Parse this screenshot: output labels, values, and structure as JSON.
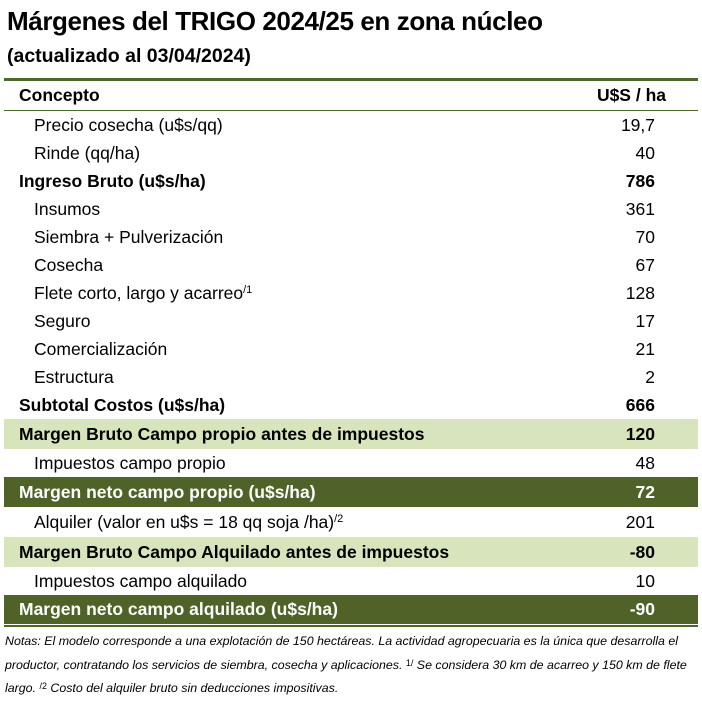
{
  "title": "Márgenes del TRIGO 2024/25 en zona núcleo",
  "subtitle": "(actualizado al 03/04/2024)",
  "header": {
    "concept": "Concepto",
    "unit": "U$S / ha"
  },
  "rows": [
    {
      "label": "Precio cosecha (u$s/qq)",
      "value": "19,7"
    },
    {
      "label": "Rinde (qq/ha)",
      "value": "40"
    },
    {
      "label": "Ingreso Bruto (u$s/ha)",
      "value": "786"
    },
    {
      "label": "Insumos",
      "value": "361"
    },
    {
      "label": "Siembra + Pulverización",
      "value": "70"
    },
    {
      "label": "Cosecha",
      "value": "67"
    },
    {
      "label": "Flete corto, largo y acarreo",
      "sup": "/1",
      "value": "128"
    },
    {
      "label": "Seguro",
      "value": "17"
    },
    {
      "label": "Comercialización",
      "value": "21"
    },
    {
      "label": "Estructura",
      "value": "2"
    },
    {
      "label": "Subtotal Costos (u$s/ha)",
      "value": "666"
    },
    {
      "label": "Margen Bruto Campo propio antes de impuestos",
      "value": "120"
    },
    {
      "label": "Impuestos  campo propio",
      "value": "48"
    },
    {
      "label": "Margen neto campo propio (u$s/ha)",
      "value": "72"
    },
    {
      "label": "Alquiler (valor en u$s = 18 qq soja /ha) ",
      "sup": "/2",
      "value": "201"
    },
    {
      "label": "Margen Bruto Campo Alquilado antes de impuestos",
      "value": "-80"
    },
    {
      "label": "Impuestos campo alquilado",
      "value": "10"
    },
    {
      "label": "Margen neto campo alquilado (u$s/ha)",
      "value": "-90"
    }
  ],
  "notes": {
    "text1": "Notas: El modelo corresponde a una explotación de 150 hectáreas. La actividad agropecuaria es la única que desarrolla el productor, contratando los servicios de siembra, cosecha y aplicaciones. ",
    "sup1": "1/",
    "text2": "  Se considera 30 km de acarreo y 150 km de flete largo. ",
    "sup2": "/2",
    "text3": "  Costo del alquiler bruto sin deducciones impositivas."
  },
  "colors": {
    "light_band": "#d8e4bc",
    "dark_band": "#4f6228",
    "rule": "#4a6b25"
  }
}
